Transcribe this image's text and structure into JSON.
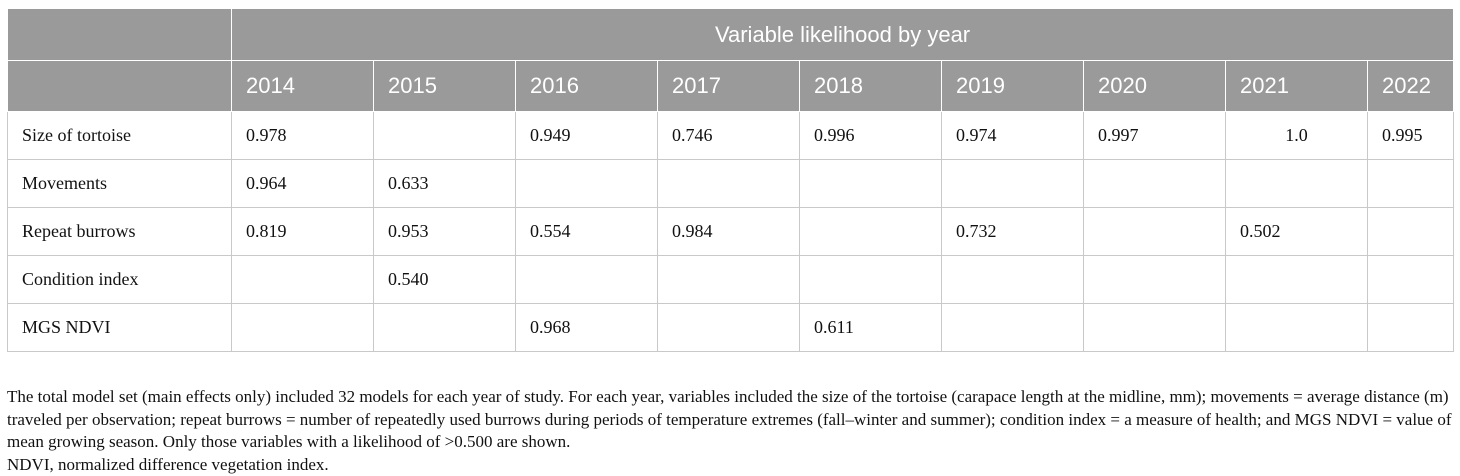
{
  "table": {
    "group_header": "Variable likelihood by year",
    "years": [
      "2014",
      "2015",
      "2016",
      "2017",
      "2018",
      "2019",
      "2020",
      "2021",
      "2022"
    ],
    "rows": [
      {
        "label": "Size of tortoise",
        "values": [
          "0.978",
          "",
          "0.949",
          "0.746",
          "0.996",
          "0.974",
          "0.997",
          "1.0",
          "0.995"
        ]
      },
      {
        "label": "Movements",
        "values": [
          "0.964",
          "0.633",
          "",
          "",
          "",
          "",
          "",
          "",
          ""
        ]
      },
      {
        "label": "Repeat burrows",
        "values": [
          "0.819",
          "0.953",
          "0.554",
          "0.984",
          "",
          "0.732",
          "",
          "0.502",
          ""
        ]
      },
      {
        "label": "Condition index",
        "values": [
          "",
          "0.540",
          "",
          "",
          "",
          "",
          "",
          "",
          ""
        ]
      },
      {
        "label": "MGS NDVI",
        "values": [
          "",
          "",
          "0.968",
          "",
          "0.611",
          "",
          "",
          "",
          ""
        ]
      }
    ]
  },
  "footnotes": [
    "The total model set (main effects only) included 32 models for each year of study. For each year, variables included the size of the tortoise (carapace length at the midline, mm); movements = average distance (m) traveled per observation; repeat burrows = number of repeatedly used burrows during periods of temperature extremes (fall–winter and summer); condition index = a measure of health; and MGS NDVI = value of mean growing season. Only those variables with a likelihood of >0.500 are shown.",
    "NDVI, normalized difference vegetation index."
  ],
  "colors": {
    "header_bg": "#9a9a9a",
    "header_text": "#ffffff",
    "grid": "#c9c9c9"
  }
}
